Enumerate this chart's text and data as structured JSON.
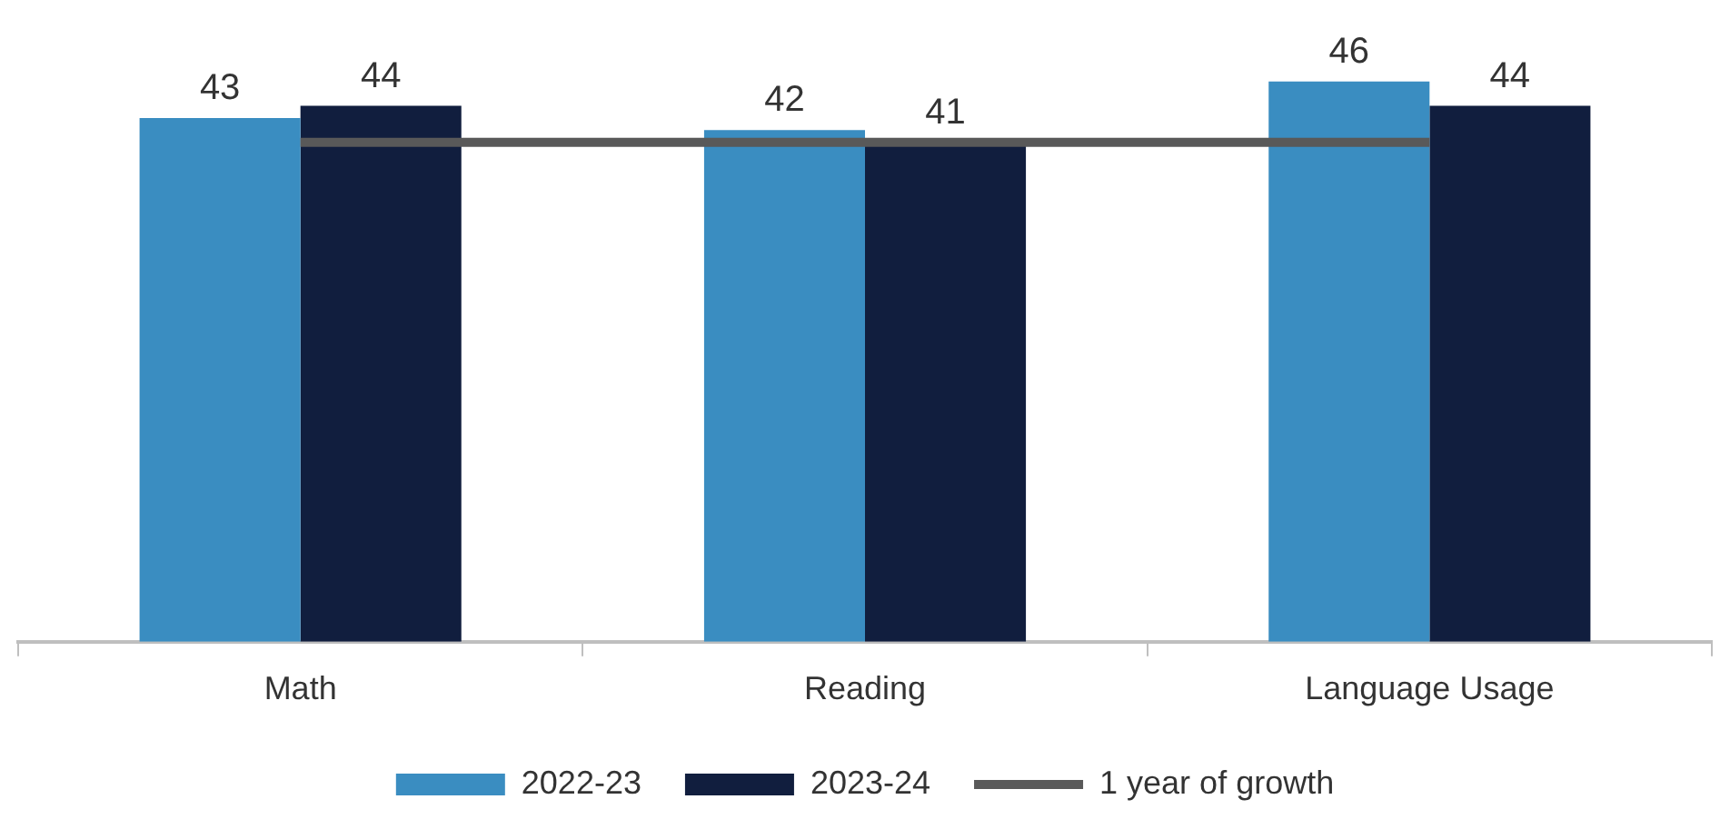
{
  "chart_data": {
    "type": "bar",
    "categories": [
      "Math",
      "Reading",
      "Language Usage"
    ],
    "series": [
      {
        "name": "2022-23",
        "color": "#3a8dc1",
        "values": [
          43,
          42,
          46
        ],
        "value_labels": [
          "43",
          "42",
          "46"
        ]
      },
      {
        "name": "2023-24",
        "color": "#111e3e",
        "values": [
          44,
          41,
          44
        ],
        "value_labels": [
          "44",
          "41",
          "44"
        ]
      },
      {
        "name": "1 year of growth",
        "type": "line",
        "color": "#595959",
        "values": [
          41,
          41,
          41
        ],
        "marker": "none"
      }
    ],
    "tick_labels": "x",
    "grid": false,
    "legend": "bottom"
  }
}
